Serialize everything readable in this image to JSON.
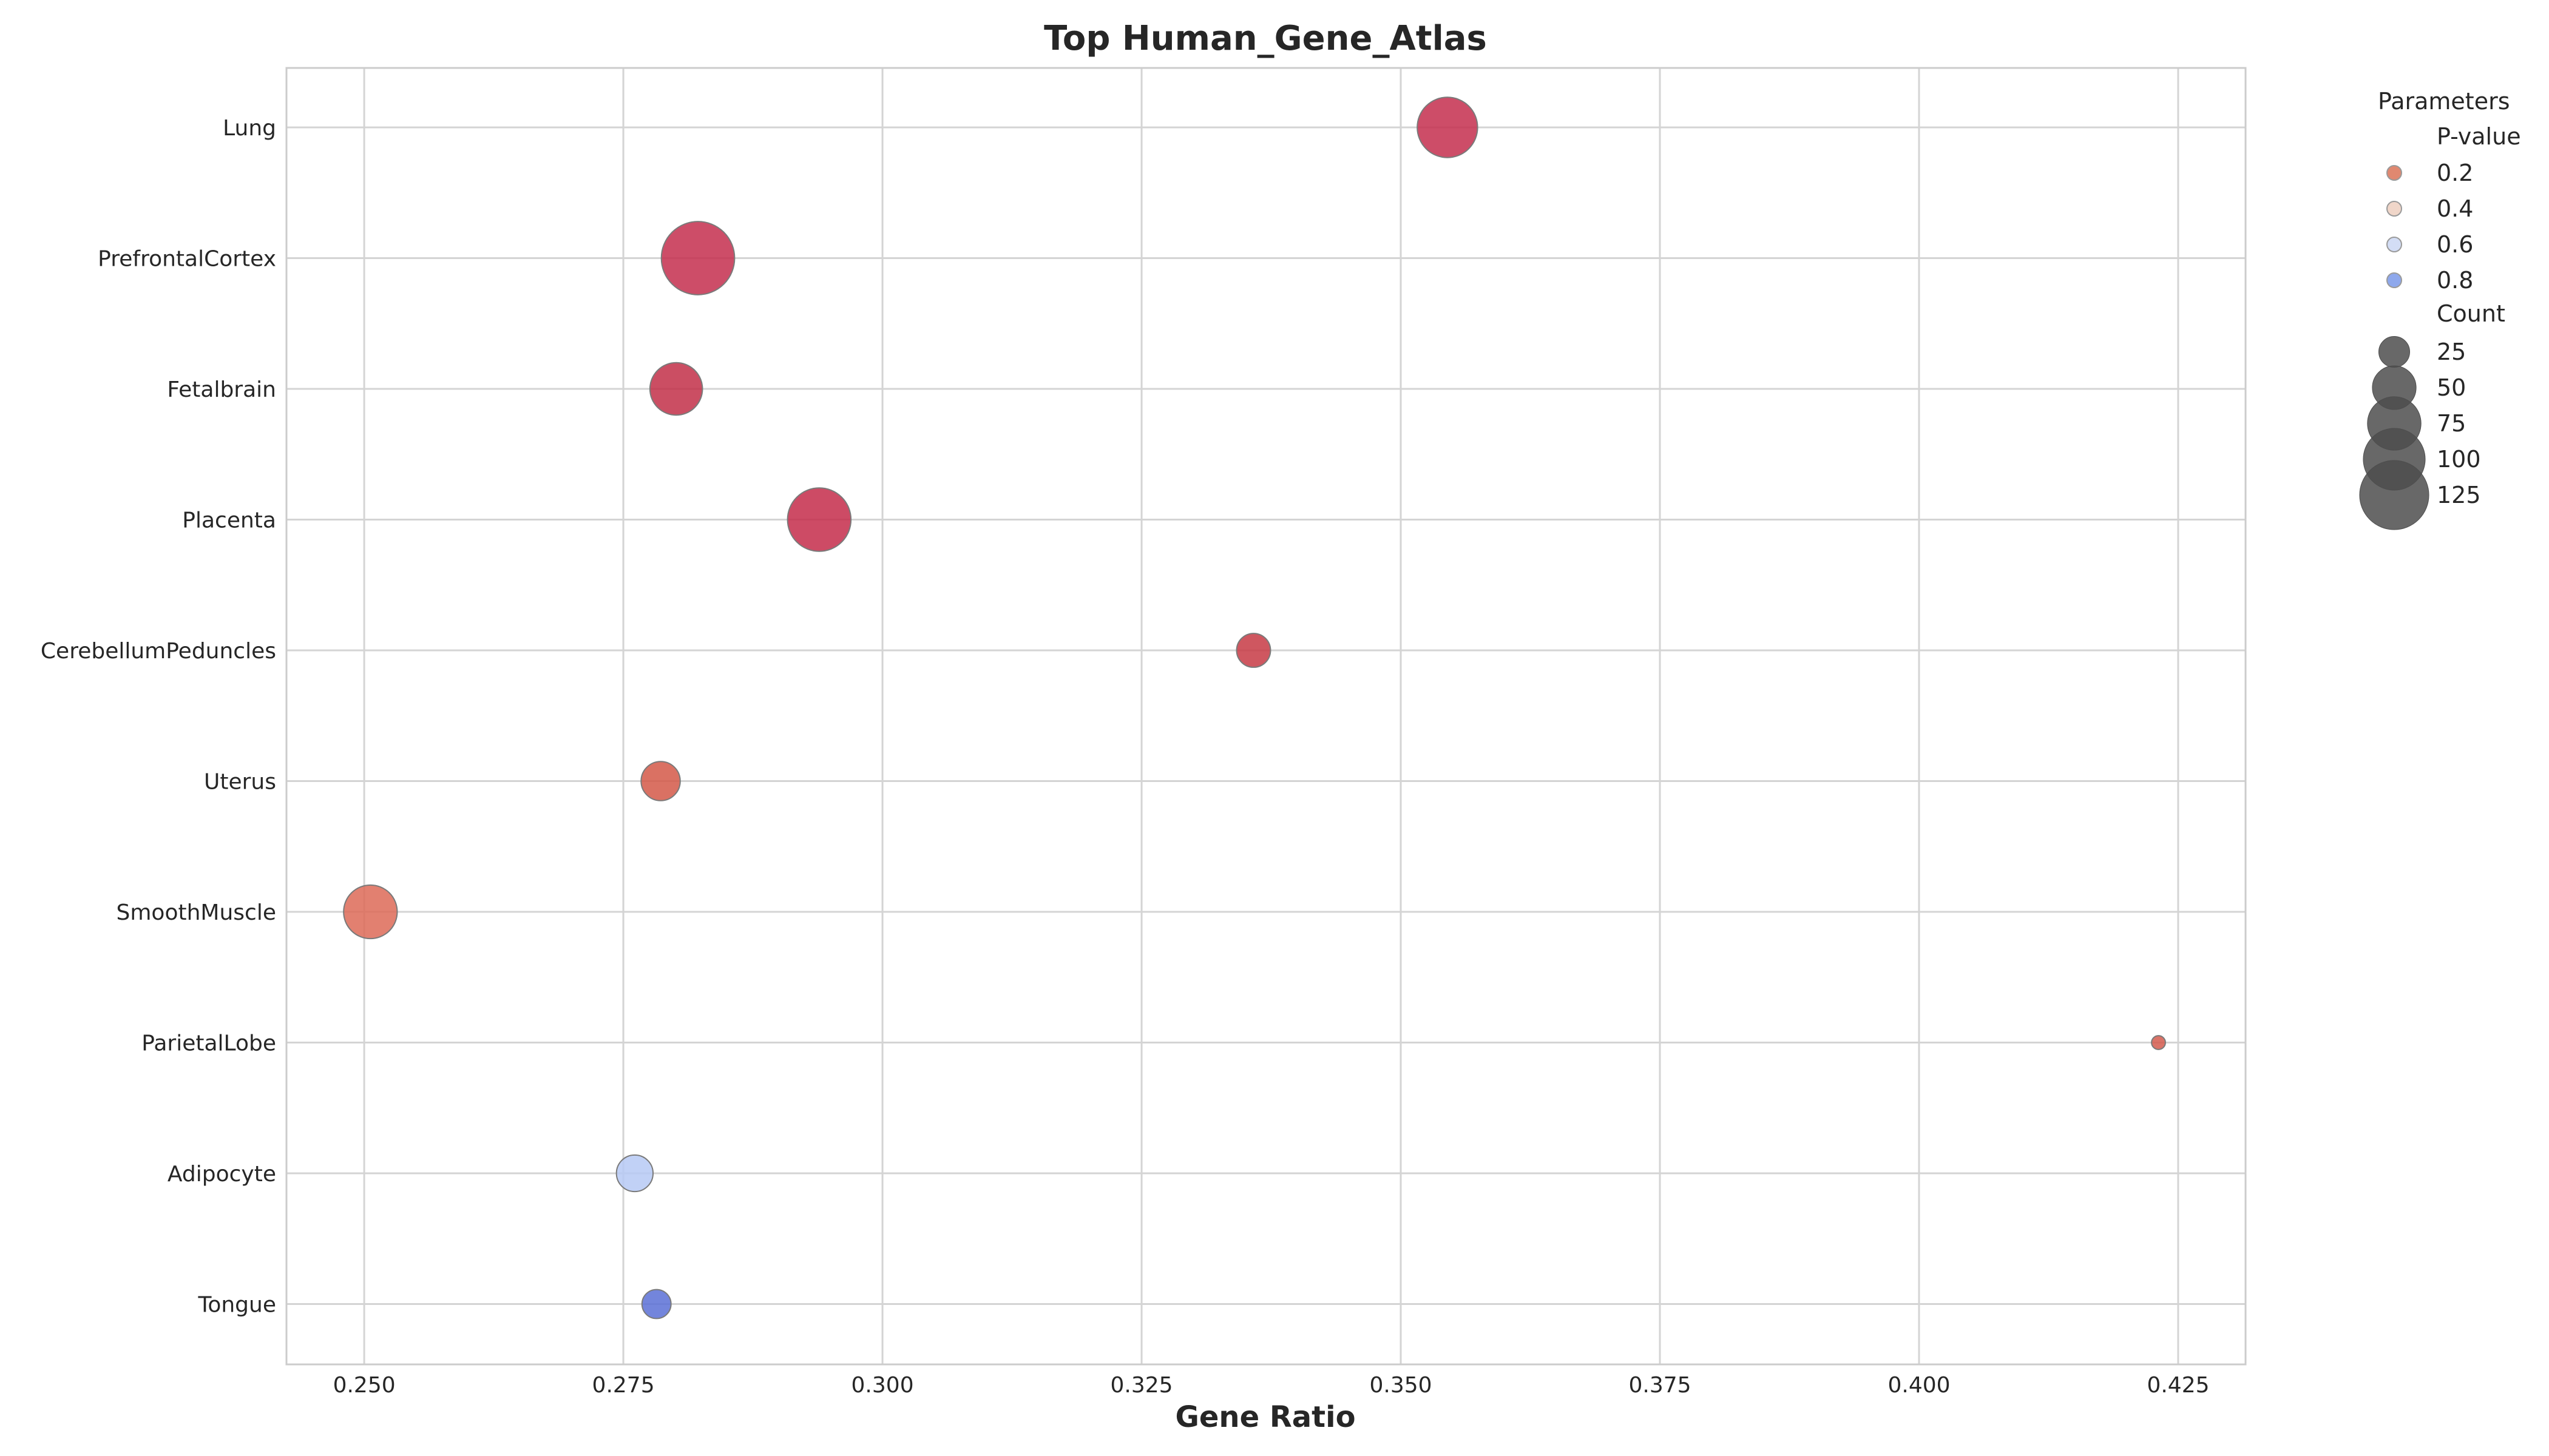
{
  "chart_data": {
    "type": "scatter",
    "title": "Top Human_Gene_Atlas",
    "xlabel": "Gene Ratio",
    "ylabel": "",
    "xlim": [
      0.2425,
      0.4315
    ],
    "x_ticks": [
      0.25,
      0.275,
      0.3,
      0.325,
      0.35,
      0.375,
      0.4,
      0.425
    ],
    "x_tick_labels": [
      "0.250",
      "0.275",
      "0.300",
      "0.325",
      "0.350",
      "0.375",
      "0.400",
      "0.425"
    ],
    "categories": [
      "Lung",
      "PrefrontalCortex",
      "Fetalbrain",
      "Placenta",
      "CerebellumPeduncles",
      "Uterus",
      "SmoothMuscle",
      "ParietalLobe",
      "Adipocyte",
      "Tongue"
    ],
    "points": [
      {
        "term": "Lung",
        "gene_ratio": 0.3545,
        "count": 95,
        "p_value": 0.02,
        "color": "#c42e4e"
      },
      {
        "term": "PrefrontalCortex",
        "gene_ratio": 0.2822,
        "count": 140,
        "p_value": 0.01,
        "color": "#c42e4e"
      },
      {
        "term": "Fetalbrain",
        "gene_ratio": 0.2801,
        "count": 72,
        "p_value": 0.03,
        "color": "#c22f48"
      },
      {
        "term": "Placenta",
        "gene_ratio": 0.2939,
        "count": 105,
        "p_value": 0.02,
        "color": "#c42c4a"
      },
      {
        "term": "CerebellumPeduncles",
        "gene_ratio": 0.3358,
        "count": 30,
        "p_value": 0.05,
        "color": "#c73a44"
      },
      {
        "term": "Uterus",
        "gene_ratio": 0.2786,
        "count": 40,
        "p_value": 0.1,
        "color": "#d35848"
      },
      {
        "term": "SmoothMuscle",
        "gene_ratio": 0.2506,
        "count": 75,
        "p_value": 0.15,
        "color": "#dd6a57"
      },
      {
        "term": "ParietalLobe",
        "gene_ratio": 0.4231,
        "count": 5,
        "p_value": 0.1,
        "color": "#d35a4d"
      },
      {
        "term": "Adipocyte",
        "gene_ratio": 0.2761,
        "count": 35,
        "p_value": 0.65,
        "color": "#b6c9f5"
      },
      {
        "term": "Tongue",
        "gene_ratio": 0.2782,
        "count": 22,
        "p_value": 0.9,
        "color": "#5a70d6"
      }
    ],
    "legend": {
      "title": "Parameters",
      "placement": "outside-right",
      "pvalue_title": "P-value",
      "pvalue_items": [
        {
          "label": "0.2",
          "color": "#e08870"
        },
        {
          "label": "0.4",
          "color": "#f0d6c9"
        },
        {
          "label": "0.6",
          "color": "#d3ddf5"
        },
        {
          "label": "0.8",
          "color": "#8ea8ec"
        }
      ],
      "count_title": "Count",
      "count_items": [
        {
          "label": "25",
          "count": 25
        },
        {
          "label": "50",
          "count": 50
        },
        {
          "label": "75",
          "count": 75
        },
        {
          "label": "100",
          "count": 100
        },
        {
          "label": "125",
          "count": 125
        }
      ]
    },
    "grid": true,
    "colormap": "coolwarm"
  }
}
